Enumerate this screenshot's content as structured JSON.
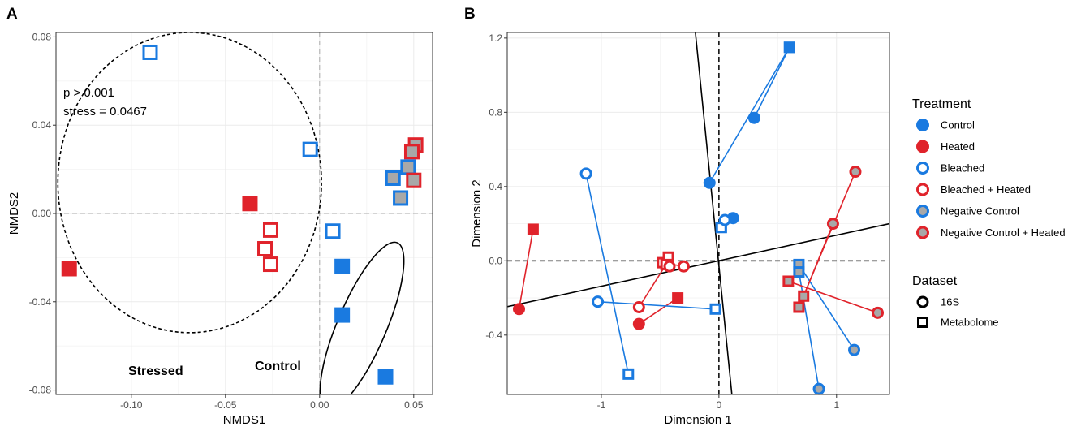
{
  "chart_data": [
    {
      "panel": "A",
      "type": "scatter",
      "xlabel": "NMDS1",
      "ylabel": "NMDS2",
      "xlim": [
        -0.14,
        0.06
      ],
      "ylim": [
        -0.082,
        0.082
      ],
      "xticks": [
        {
          "v": -0.1,
          "label": "-0.10"
        },
        {
          "v": -0.05,
          "label": "-0.05"
        },
        {
          "v": 0.0,
          "label": "0.00"
        },
        {
          "v": 0.05,
          "label": "0.05"
        }
      ],
      "yticks": [
        {
          "v": -0.08,
          "label": "-0.08"
        },
        {
          "v": -0.04,
          "label": "-0.04"
        },
        {
          "v": 0.0,
          "label": "0.00"
        },
        {
          "v": 0.04,
          "label": "0.04"
        },
        {
          "v": 0.08,
          "label": "0.08"
        }
      ],
      "grid": true,
      "annotations": [
        "p > 0.001",
        "stress = 0.0467"
      ],
      "group_labels": [
        "Stressed",
        "Control"
      ],
      "ellipses": [
        {
          "group": "Stressed",
          "cx": -0.069,
          "cy": 0.014,
          "rx": 0.07,
          "ry": 0.068,
          "angle": 0,
          "style": "dashed"
        },
        {
          "group": "Control",
          "cx": 0.0225,
          "cy": -0.051,
          "rx": 0.041,
          "ry": 0.013,
          "angle": -67,
          "style": "solid"
        }
      ],
      "points": [
        {
          "group": "Bleached",
          "x": -0.09,
          "y": 0.073
        },
        {
          "group": "Bleached",
          "x": -0.005,
          "y": 0.029
        },
        {
          "group": "Bleached",
          "x": 0.007,
          "y": -0.008
        },
        {
          "group": "Heated",
          "x": -0.037,
          "y": 0.0045
        },
        {
          "group": "Heated",
          "x": -0.133,
          "y": -0.025
        },
        {
          "group": "Bleached + Heated",
          "x": -0.026,
          "y": -0.0075
        },
        {
          "group": "Bleached + Heated",
          "x": -0.029,
          "y": -0.016
        },
        {
          "group": "Bleached + Heated",
          "x": -0.026,
          "y": -0.023
        },
        {
          "group": "Control",
          "x": 0.012,
          "y": -0.024
        },
        {
          "group": "Control",
          "x": 0.012,
          "y": -0.046
        },
        {
          "group": "Control",
          "x": 0.035,
          "y": -0.074
        },
        {
          "group": "Negative Control + Heated",
          "x": 0.051,
          "y": 0.031
        },
        {
          "group": "Negative Control + Heated",
          "x": 0.049,
          "y": 0.028
        },
        {
          "group": "Negative Control",
          "x": 0.047,
          "y": 0.021
        },
        {
          "group": "Negative Control",
          "x": 0.039,
          "y": 0.016
        },
        {
          "group": "Negative Control + Heated",
          "x": 0.05,
          "y": 0.015
        },
        {
          "group": "Negative Control",
          "x": 0.043,
          "y": 0.007
        }
      ]
    },
    {
      "panel": "B",
      "type": "scatter",
      "xlabel": "Dimension 1",
      "ylabel": "Dimension 2",
      "xlim": [
        -1.8,
        1.45
      ],
      "ylim": [
        -0.72,
        1.23
      ],
      "xticks": [
        {
          "v": -1,
          "label": "-1"
        },
        {
          "v": 0,
          "label": "0"
        },
        {
          "v": 1,
          "label": "1"
        }
      ],
      "yticks": [
        {
          "v": -0.4,
          "label": "-0.4"
        },
        {
          "v": 0.0,
          "label": "0.0"
        },
        {
          "v": 0.4,
          "label": "0.4"
        },
        {
          "v": 0.8,
          "label": "0.8"
        },
        {
          "v": 1.2,
          "label": "1.2"
        }
      ],
      "grid": true,
      "axis_lines": [
        {
          "from": [
            -1.8,
            -0.247
          ],
          "to": [
            1.45,
            0.2
          ]
        },
        {
          "from": [
            -0.2,
            1.23
          ],
          "to": [
            0.11,
            -0.72
          ]
        }
      ],
      "pairs": [
        {
          "group": "Control",
          "circle": [
            0.3,
            0.77
          ],
          "square": [
            0.6,
            1.15
          ]
        },
        {
          "group": "Control",
          "circle": [
            -0.08,
            0.42
          ],
          "square": [
            0.6,
            1.15
          ]
        },
        {
          "group": "Control",
          "circle": [
            0.12,
            0.23
          ],
          "square": [
            0.02,
            0.18
          ]
        },
        {
          "group": "Heated",
          "circle": [
            -1.7,
            -0.26
          ],
          "square": [
            -1.58,
            0.17
          ]
        },
        {
          "group": "Heated",
          "circle": [
            -0.68,
            -0.34
          ],
          "square": [
            -0.35,
            -0.2
          ]
        },
        {
          "group": "Bleached",
          "circle": [
            -1.13,
            0.47
          ],
          "square": [
            -0.77,
            -0.61
          ]
        },
        {
          "group": "Bleached",
          "circle": [
            -1.03,
            -0.22
          ],
          "square": [
            -0.03,
            -0.26
          ]
        },
        {
          "group": "Bleached",
          "circle": [
            0.05,
            0.22
          ],
          "square": [
            0.02,
            0.18
          ]
        },
        {
          "group": "Bleached + Heated",
          "circle": [
            -0.3,
            -0.03
          ],
          "square": [
            -0.48,
            -0.01
          ]
        },
        {
          "group": "Bleached + Heated",
          "circle": [
            -0.42,
            -0.03
          ],
          "square": [
            -0.43,
            0.02
          ]
        },
        {
          "group": "Bleached + Heated",
          "circle": [
            -0.68,
            -0.25
          ],
          "square": [
            -0.45,
            -0.02
          ]
        },
        {
          "group": "Negative Control",
          "circle": [
            1.15,
            -0.48
          ],
          "square": [
            0.68,
            -0.02
          ]
        },
        {
          "group": "Negative Control",
          "circle": [
            0.85,
            -0.69
          ],
          "square": [
            0.68,
            -0.06
          ]
        },
        {
          "group": "Negative Control + Heated",
          "circle": [
            1.16,
            0.48
          ],
          "square": [
            0.68,
            -0.25
          ]
        },
        {
          "group": "Negative Control + Heated",
          "circle": [
            0.97,
            0.2
          ],
          "square": [
            0.72,
            -0.19
          ]
        },
        {
          "group": "Negative Control + Heated",
          "circle": [
            1.35,
            -0.28
          ],
          "square": [
            0.59,
            -0.11
          ]
        }
      ],
      "legend": {
        "treatment_title": "Treatment",
        "treatment_items": [
          {
            "label": "Control",
            "fill": "#1a7ae0",
            "stroke": "#1a7ae0"
          },
          {
            "label": "Heated",
            "fill": "#e0232b",
            "stroke": "#e0232b"
          },
          {
            "label": "Bleached",
            "fill": "#ffffff",
            "stroke": "#1a7ae0"
          },
          {
            "label": "Bleached + Heated",
            "fill": "#ffffff",
            "stroke": "#e0232b"
          },
          {
            "label": "Negative Control",
            "fill": "#a8a8a8",
            "stroke": "#1a7ae0"
          },
          {
            "label": "Negative Control + Heated",
            "fill": "#a8a8a8",
            "stroke": "#e0232b"
          }
        ],
        "dataset_title": "Dataset",
        "dataset_items": [
          {
            "label": "16S",
            "shape": "circle"
          },
          {
            "label": "Metabolome",
            "shape": "square"
          }
        ]
      }
    }
  ],
  "panel_labels": [
    "A",
    "B"
  ],
  "colors": {
    "blue": "#1a7ae0",
    "red": "#e0232b",
    "grey": "#a8a8a8",
    "grid": "#ebebeb"
  }
}
